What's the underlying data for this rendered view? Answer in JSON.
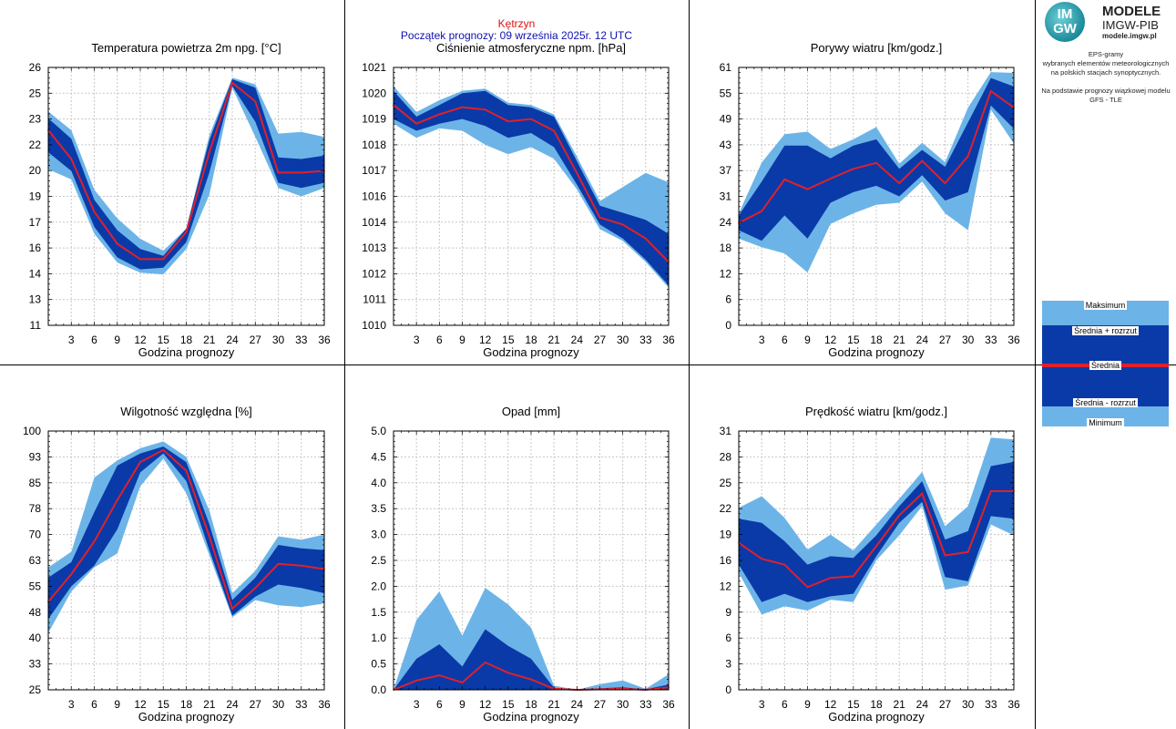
{
  "header": {
    "station": "Kętrzyn",
    "forecast_start": "Początek prognozy: 09 września 2025r. 12 UTC"
  },
  "logo": {
    "letters_top": "IM",
    "letters_bottom": "GW",
    "title": "MODELE",
    "subtitle": "IMGW-PIB",
    "url": "modele.imgw.pl"
  },
  "description": {
    "line1": "EPS-gramy",
    "line2": "wybranych elementów meteorologicznych",
    "line3": "na polskich stacjach  synoptycznych.",
    "line4": "Na podstawie prognozy wiązkowej modelu",
    "line5": "GFS - TLE"
  },
  "legend": {
    "max": "Maksimum",
    "mean_plus": "Średnia + rozrzut",
    "mean": "Średnia",
    "mean_minus": "Średnia - rozrzut",
    "min": "Minimum"
  },
  "colors": {
    "outer_band": "#6cb4e8",
    "inner_band": "#0a3aa8",
    "mean_line": "#e0202a",
    "grid": "#c8c8c8",
    "station_text": "#e01010",
    "start_text": "#1010b0"
  },
  "chart_data": [
    {
      "type": "area",
      "title": "Temperatura powietrza 2m npg. [°C]",
      "xlabel": "Godzina prognozy",
      "x": [
        0,
        3,
        6,
        9,
        12,
        15,
        18,
        21,
        24,
        27,
        30,
        33,
        36
      ],
      "xticks": [
        "3",
        "6",
        "9",
        "12",
        "15",
        "18",
        "21",
        "24",
        "27",
        "30",
        "33",
        "36"
      ],
      "ylim": [
        10.8,
        26
      ],
      "yticks": [
        "11",
        "13",
        "14",
        "16",
        "17",
        "19",
        "20",
        "22",
        "23",
        "25",
        "26"
      ],
      "series": [
        {
          "name": "Maksimum",
          "values": [
            23.4,
            22.3,
            18.8,
            17.1,
            15.9,
            15.2,
            16.5,
            22.0,
            25.4,
            25.0,
            22.1,
            22.2,
            21.9
          ]
        },
        {
          "name": "Średnia + rozrzut",
          "values": [
            23.0,
            21.8,
            18.2,
            16.4,
            15.3,
            14.9,
            16.5,
            21.7,
            25.3,
            24.8,
            20.7,
            20.6,
            20.8
          ]
        },
        {
          "name": "Średnia",
          "values": [
            22.3,
            20.6,
            17.5,
            15.6,
            14.7,
            14.7,
            16.3,
            21.0,
            25.1,
            24.0,
            19.8,
            19.8,
            19.9
          ]
        },
        {
          "name": "Średnia - rozrzut",
          "values": [
            21.0,
            19.9,
            16.6,
            14.8,
            14.1,
            14.2,
            15.7,
            19.8,
            24.9,
            22.8,
            19.2,
            18.9,
            19.2
          ]
        },
        {
          "name": "Minimum",
          "values": [
            20.0,
            19.4,
            16.2,
            14.5,
            13.9,
            13.8,
            15.3,
            18.5,
            24.8,
            21.9,
            18.9,
            18.4,
            18.9
          ]
        }
      ]
    },
    {
      "type": "area",
      "title": "Ciśnienie atmosferyczne npm. [hPa]",
      "xlabel": "Godzina prognozy",
      "x": [
        0,
        3,
        6,
        9,
        12,
        15,
        18,
        21,
        24,
        27,
        30,
        33,
        36
      ],
      "xticks": [
        "3",
        "6",
        "9",
        "12",
        "15",
        "18",
        "21",
        "24",
        "27",
        "30",
        "33",
        "36"
      ],
      "ylim": [
        1010,
        1021
      ],
      "yticks": [
        "1010",
        "1011",
        "1012",
        "1013",
        "1014",
        "1016",
        "1017",
        "1018",
        "1019",
        "1020",
        "1021"
      ],
      "series": [
        {
          "name": "Maksimum",
          "values": [
            1020.2,
            1019.1,
            1019.6,
            1020.0,
            1020.1,
            1019.5,
            1019.4,
            1019.0,
            1017.2,
            1015.3,
            1015.9,
            1016.5,
            1016.1
          ]
        },
        {
          "name": "Średnia + rozrzut",
          "values": [
            1020.0,
            1018.9,
            1019.4,
            1019.9,
            1020.0,
            1019.4,
            1019.3,
            1018.9,
            1017.0,
            1015.1,
            1014.8,
            1014.5,
            1013.9
          ]
        },
        {
          "name": "Średnia",
          "values": [
            1019.4,
            1018.6,
            1019.0,
            1019.3,
            1019.2,
            1018.7,
            1018.8,
            1018.3,
            1016.5,
            1014.6,
            1014.3,
            1013.7,
            1012.7
          ]
        },
        {
          "name": "Średnia - rozrzut",
          "values": [
            1018.8,
            1018.3,
            1018.6,
            1018.8,
            1018.5,
            1018.0,
            1018.2,
            1017.6,
            1016.0,
            1014.3,
            1013.7,
            1012.8,
            1011.7
          ]
        },
        {
          "name": "Minimum",
          "values": [
            1018.6,
            1018.0,
            1018.4,
            1018.3,
            1017.7,
            1017.3,
            1017.6,
            1017.1,
            1015.8,
            1014.1,
            1013.6,
            1012.7,
            1011.6
          ]
        }
      ]
    },
    {
      "type": "area",
      "title": "Porywy wiatru [km/godz.]",
      "xlabel": "Godzina prognozy",
      "x": [
        0,
        3,
        6,
        9,
        12,
        15,
        18,
        21,
        24,
        27,
        30,
        33,
        36
      ],
      "xticks": [
        "3",
        "6",
        "9",
        "12",
        "15",
        "18",
        "21",
        "24",
        "27",
        "30",
        "33",
        "36"
      ],
      "ylim": [
        0,
        61
      ],
      "yticks": [
        "0",
        "6",
        "12",
        "18",
        "24",
        "31",
        "37",
        "43",
        "49",
        "55",
        "61"
      ],
      "series": [
        {
          "name": "Maksimum",
          "values": [
            26.5,
            38.5,
            45.2,
            45.8,
            41.7,
            44.0,
            46.9,
            38.2,
            43.2,
            38.6,
            51.5,
            59.9,
            59.7
          ]
        },
        {
          "name": "Średnia + rozrzut",
          "values": [
            26.0,
            34.0,
            42.5,
            42.5,
            39.5,
            42.5,
            44.0,
            37.0,
            41.5,
            37.5,
            48.0,
            58.5,
            56.5
          ]
        },
        {
          "name": "Średnia",
          "values": [
            24.2,
            27.0,
            34.5,
            32.2,
            34.7,
            37.0,
            38.4,
            33.6,
            38.9,
            33.6,
            40.0,
            55.4,
            51.5
          ]
        },
        {
          "name": "Średnia - rozrzut",
          "values": [
            22.5,
            20.0,
            26.0,
            20.5,
            29.0,
            31.5,
            33.0,
            30.5,
            35.5,
            29.5,
            31.5,
            52.0,
            46.5
          ]
        },
        {
          "name": "Minimum",
          "values": [
            20.5,
            18.5,
            17.0,
            12.5,
            24.0,
            26.5,
            28.5,
            29.0,
            34.0,
            26.5,
            22.5,
            51.0,
            43.0
          ]
        }
      ]
    },
    {
      "type": "area",
      "title": "Wilgotność względna [%]",
      "xlabel": "Godzina prognozy",
      "x": [
        0,
        3,
        6,
        9,
        12,
        15,
        18,
        21,
        24,
        27,
        30,
        33,
        36
      ],
      "xticks": [
        "3",
        "6",
        "9",
        "12",
        "15",
        "18",
        "21",
        "24",
        "27",
        "30",
        "33",
        "36"
      ],
      "ylim": [
        25,
        100
      ],
      "yticks": [
        "25",
        "33",
        "40",
        "48",
        "55",
        "63",
        "70",
        "78",
        "85",
        "93",
        "100"
      ],
      "series": [
        {
          "name": "Maksimum",
          "values": [
            60.5,
            65.0,
            86.5,
            91.5,
            95.0,
            97.0,
            92.5,
            77.0,
            53.0,
            59.5,
            69.5,
            68.5,
            70.0
          ]
        },
        {
          "name": "Średnia + rozrzut",
          "values": [
            57.5,
            62.0,
            76.5,
            90.0,
            93.5,
            95.5,
            91.0,
            73.0,
            51.0,
            57.5,
            67.0,
            66.0,
            65.5
          ]
        },
        {
          "name": "Średnia",
          "values": [
            50.5,
            58.5,
            68.0,
            80.0,
            91.0,
            94.5,
            88.5,
            69.5,
            48.5,
            54.5,
            61.5,
            61.0,
            60.0
          ]
        },
        {
          "name": "Średnia - rozrzut",
          "values": [
            45.5,
            55.0,
            61.0,
            71.5,
            88.0,
            93.5,
            85.5,
            65.5,
            46.5,
            52.0,
            55.5,
            54.5,
            53.0
          ]
        },
        {
          "name": "Minimum",
          "values": [
            41.5,
            53.5,
            60.5,
            64.5,
            84.0,
            92.0,
            82.0,
            64.0,
            46.0,
            51.0,
            49.5,
            49.0,
            50.0
          ]
        }
      ]
    },
    {
      "type": "area",
      "title": "Opad [mm]",
      "xlabel": "Godzina prognozy",
      "x": [
        0,
        3,
        6,
        9,
        12,
        15,
        18,
        21,
        24,
        27,
        30,
        33,
        36
      ],
      "xticks": [
        "3",
        "6",
        "9",
        "12",
        "15",
        "18",
        "21",
        "24",
        "27",
        "30",
        "33",
        "36"
      ],
      "ylim": [
        0,
        5.0
      ],
      "yticks": [
        "0.0",
        "0.5",
        "1.0",
        "1.5",
        "2.0",
        "2.5",
        "3.0",
        "3.5",
        "4.0",
        "4.5",
        "5.0"
      ],
      "series": [
        {
          "name": "Maksimum",
          "values": [
            0.0,
            1.35,
            1.9,
            1.05,
            1.97,
            1.65,
            1.2,
            0.08,
            0.0,
            0.11,
            0.18,
            0.02,
            0.3
          ]
        },
        {
          "name": "Średnia + rozrzut",
          "values": [
            0.0,
            0.6,
            0.88,
            0.45,
            1.17,
            0.85,
            0.6,
            0.04,
            0.0,
            0.03,
            0.05,
            0.01,
            0.1
          ]
        },
        {
          "name": "Średnia",
          "values": [
            0.0,
            0.18,
            0.28,
            0.14,
            0.53,
            0.33,
            0.2,
            0.02,
            0.0,
            0.01,
            0.02,
            0.0,
            0.05
          ]
        },
        {
          "name": "Średnia - rozrzut",
          "values": [
            0.0,
            0.0,
            0.0,
            0.0,
            0.0,
            0.0,
            0.0,
            0.0,
            0.0,
            0.0,
            0.0,
            0.0,
            0.0
          ]
        },
        {
          "name": "Minimum",
          "values": [
            0.0,
            0.0,
            0.0,
            0.0,
            0.0,
            0.0,
            0.0,
            0.0,
            0.0,
            0.0,
            0.0,
            0.0,
            0.0
          ]
        }
      ]
    },
    {
      "type": "area",
      "title": "Prędkość wiatru [km/godz.]",
      "xlabel": "Godzina prognozy",
      "x": [
        0,
        3,
        6,
        9,
        12,
        15,
        18,
        21,
        24,
        27,
        30,
        33,
        36
      ],
      "xticks": [
        "3",
        "6",
        "9",
        "12",
        "15",
        "18",
        "21",
        "24",
        "27",
        "30",
        "33",
        "36"
      ],
      "ylim": [
        0,
        31
      ],
      "yticks": [
        "0",
        "3",
        "6",
        "9",
        "12",
        "16",
        "19",
        "22",
        "25",
        "28",
        "31"
      ],
      "series": [
        {
          "name": "Maksimum",
          "values": [
            21.8,
            23.2,
            20.6,
            16.8,
            18.6,
            16.7,
            19.8,
            22.9,
            26.1,
            19.6,
            22.0,
            30.2,
            30.0
          ]
        },
        {
          "name": "Średnia + rozrzut",
          "values": [
            20.5,
            20.0,
            17.8,
            15.0,
            16.0,
            15.8,
            18.5,
            22.0,
            25.0,
            18.0,
            19.0,
            26.8,
            27.3
          ]
        },
        {
          "name": "Średnia",
          "values": [
            17.6,
            15.7,
            15.0,
            12.3,
            13.4,
            13.6,
            17.2,
            20.9,
            23.5,
            16.1,
            16.5,
            23.8,
            23.8
          ]
        },
        {
          "name": "Średnia - rozrzut",
          "values": [
            15.0,
            10.5,
            11.5,
            10.5,
            11.2,
            11.5,
            16.0,
            20.0,
            22.5,
            13.5,
            13.0,
            20.8,
            20.5
          ]
        },
        {
          "name": "Minimum",
          "values": [
            14.0,
            9.0,
            10.0,
            9.5,
            10.8,
            10.5,
            15.5,
            18.5,
            22.0,
            12.0,
            12.5,
            19.8,
            18.5
          ]
        }
      ]
    }
  ]
}
